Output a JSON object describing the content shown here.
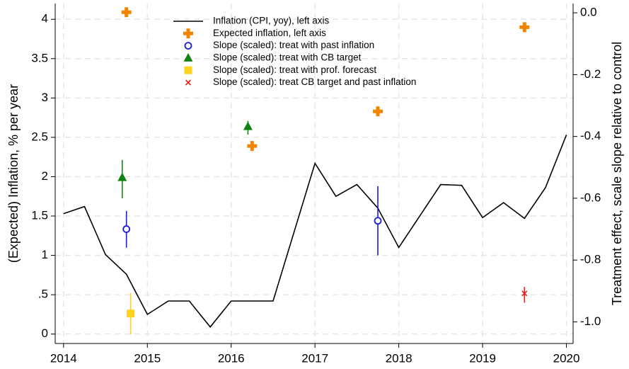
{
  "chart_data": {
    "type": "line",
    "ylabel": "(Expected) Inflation, % per year",
    "y2label": "Treatment effect, scale slope relative to control",
    "xlim": [
      2013.9,
      2020.08
    ],
    "xticks": [
      2014,
      2015,
      2016,
      2017,
      2018,
      2019,
      2020
    ],
    "ylim": [
      -0.12,
      4.2
    ],
    "yticks": [
      0,
      {
        "value": 0.5,
        "label": ".5"
      },
      1,
      1.5,
      2,
      2.5,
      3,
      3.5,
      4
    ],
    "y2lim": [
      -1.07,
      0.03
    ],
    "y2ticks": [
      {
        "value": 0,
        "label": "0.0"
      },
      -0.2,
      -0.4,
      -0.6,
      -0.8,
      {
        "value": -1,
        "label": "-1.0"
      }
    ],
    "grid": true,
    "legend": "top",
    "series": [
      {
        "name": "Inflation (CPI, yoy), left axis",
        "color": "#000000",
        "style": "line",
        "x": [
          2014,
          2014.25,
          2014.5,
          2014.75,
          2015,
          2015.25,
          2015.5,
          2015.75,
          2016,
          2016.25,
          2016.5,
          2017,
          2017.25,
          2017.5,
          2017.75,
          2018,
          2018.5,
          2018.75,
          2019,
          2019.25,
          2019.5,
          2019.75,
          2020
        ],
        "values": [
          1.53,
          1.62,
          1.01,
          0.76,
          0.25,
          0.42,
          0.42,
          0.09,
          0.42,
          0.42,
          0.42,
          2.17,
          1.75,
          1.9,
          1.6,
          1.1,
          1.9,
          1.89,
          1.48,
          1.67,
          1.47,
          1.86,
          2.53
        ]
      },
      {
        "name": "Expected inflation, left axis",
        "color": "#f28500",
        "style": "plus",
        "x": [
          2014.75,
          2016.25,
          2017.75,
          2019.5
        ],
        "values": [
          4.09,
          2.39,
          2.83,
          3.9
        ]
      },
      {
        "name": "Slope (scaled): treat with past inflation",
        "color": "#1a1adb",
        "style": "circle",
        "axis": "y2",
        "x": [
          2014.75,
          2017.75
        ],
        "values": [
          -0.7,
          -0.673
        ],
        "low": [
          -0.76,
          -0.785
        ],
        "high": [
          -0.641,
          -0.561
        ]
      },
      {
        "name": "Slope (scaled): treat with CB target",
        "color": "#128212",
        "style": "triangle",
        "axis": "y2",
        "x": [
          2014.7,
          2016.2
        ],
        "values": [
          -0.533,
          -0.368
        ],
        "low": [
          -0.6,
          -0.394
        ],
        "high": [
          -0.476,
          -0.35
        ]
      },
      {
        "name": "Slope (scaled): treat with prof. forecast",
        "color": "#ffd21f",
        "style": "square",
        "axis": "y2",
        "x": [
          2014.8
        ],
        "values": [
          -0.973
        ],
        "low": [
          -1.041
        ],
        "high": [
          -0.906
        ]
      },
      {
        "name": "Slope (scaled): treat CB target and past inflation",
        "color": "#e8201c",
        "style": "x",
        "axis": "y2",
        "x": [
          2019.5
        ],
        "values": [
          -0.908
        ],
        "low": [
          -0.938
        ],
        "high": [
          -0.887
        ]
      }
    ]
  }
}
